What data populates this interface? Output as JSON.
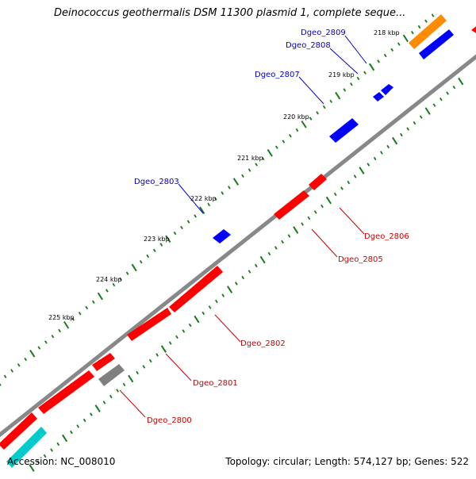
{
  "title": "Deinococcus geothermalis DSM 11300 plasmid 1, complete seque...",
  "footer": {
    "accession": "Accession: NC_008010",
    "summary": "Topology: circular; Length: 574,127 bp; Genes: 522"
  },
  "ticks": [
    "218 kbp",
    "219 kbp",
    "220 kbp",
    "221 kbp",
    "222 kbp",
    "223 kbp",
    "224 kbp",
    "225 kbp"
  ],
  "genes_forward": [
    "Dgeo_2809",
    "Dgeo_2808",
    "Dgeo_2807",
    "Dgeo_2803"
  ],
  "genes_reverse": [
    "Dgeo_2806",
    "Dgeo_2805",
    "Dgeo_2802",
    "Dgeo_2801",
    "Dgeo_2800"
  ],
  "colors": {
    "forward": "#0000ff",
    "reverse": "#ff0000",
    "backbone": "#888888",
    "ticks": "#1a7a1a",
    "orange": "#ff8c00",
    "gray": "#808080",
    "cyan": "#00cccc"
  }
}
